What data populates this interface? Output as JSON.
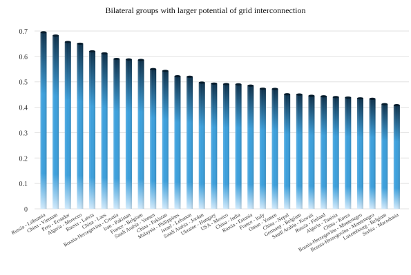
{
  "chart_data": {
    "type": "bar",
    "title": "Bilateral groups with larger potential of grid interconnection",
    "xlabel": "",
    "ylabel": "",
    "ylim": [
      0,
      0.7
    ],
    "yticks": [
      "0",
      "0.1",
      "0.2",
      "0.3",
      "0.4",
      "0.5",
      "0.6",
      "0.7"
    ],
    "grid": true,
    "legend": "none",
    "categories": [
      "Russia - Lithuania",
      "China - Vietnam",
      "Peru - Ecuador",
      "Algeria - Morocco",
      "Russia - Latvia",
      "China - Laos",
      "Bosnia-Herzegovina - Croatia",
      "Iran - Pakistan",
      "France - Belgium",
      "Saudi Arabia - Yemen",
      "China - Pakistan",
      "Malaysia - Philippines",
      "Israel - Lebanon",
      "Saudi Arabia - Jordan",
      "Ukraine - Hungary",
      "USA - Mexico",
      "China - India",
      "Russia - Estonia",
      "France - Italy",
      "Oman - Yemen",
      "China - Nepal",
      "Germany - Belgium",
      "Saudi Arabia - Kuwait",
      "Russia - Finland",
      "Algeria - Tunisia",
      "China - Korea",
      "Bosnia-Herzegovina - Montenegro",
      "Bosnia-Herzegovina - Montenegro",
      "Luxembourg - Belgium",
      "Serbia - Macedonia"
    ],
    "values": [
      0.695,
      0.682,
      0.657,
      0.65,
      0.62,
      0.612,
      0.59,
      0.588,
      0.586,
      0.55,
      0.543,
      0.522,
      0.52,
      0.497,
      0.493,
      0.491,
      0.49,
      0.485,
      0.473,
      0.472,
      0.451,
      0.45,
      0.445,
      0.443,
      0.44,
      0.438,
      0.435,
      0.433,
      0.412,
      0.408
    ],
    "colors": {
      "bar_top": "#0b2f4a",
      "bar_mid": "#3b9fdc",
      "bar_bottom": "#cfe9fb",
      "grid": "#e0e0e0",
      "axis_text": "#333333"
    }
  }
}
